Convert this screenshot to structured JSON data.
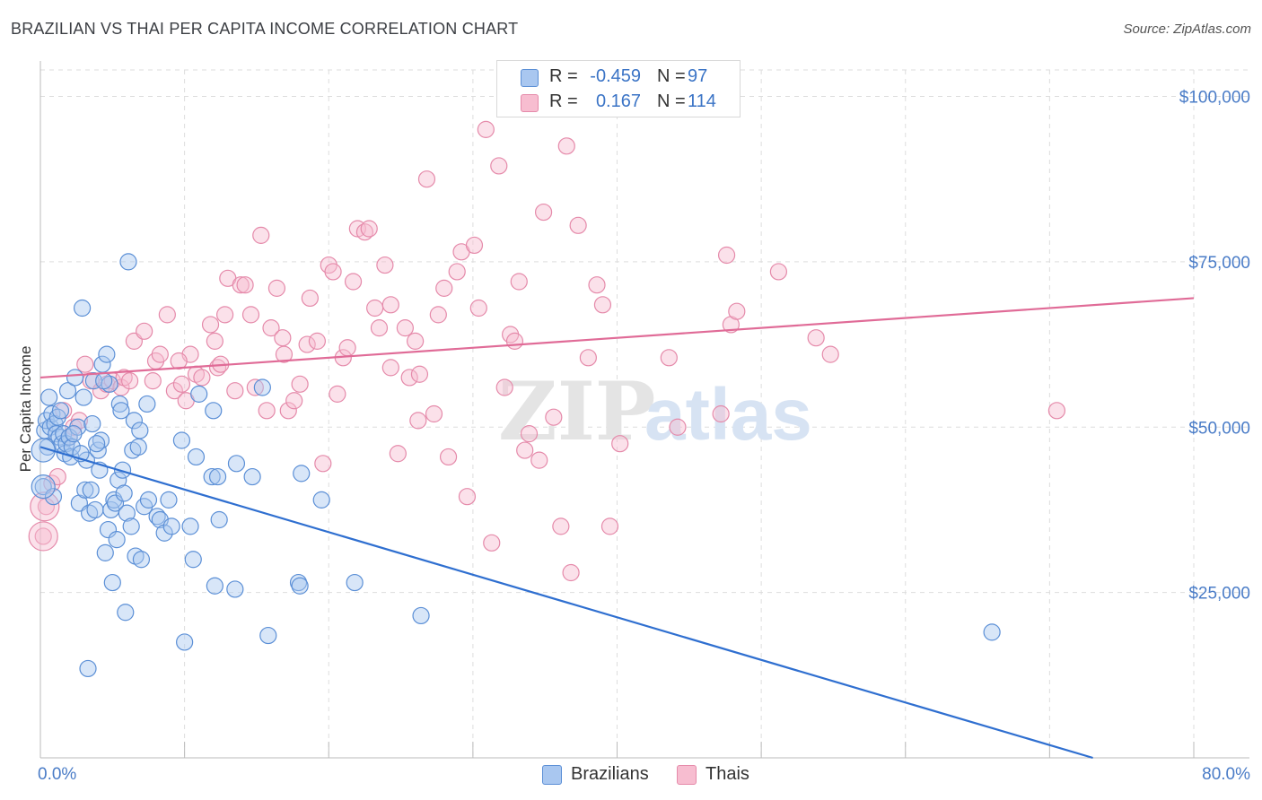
{
  "header": {
    "title": "BRAZILIAN VS THAI PER CAPITA INCOME CORRELATION CHART",
    "source": "Source: ZipAtlas.com"
  },
  "legend": {
    "rows": [
      {
        "r_label": "R =",
        "r_value": "-0.459",
        "n_label": "N =",
        "n_value": "97"
      },
      {
        "r_label": "R =",
        "r_value": "0.167",
        "n_label": "N =",
        "n_value": "114"
      }
    ]
  },
  "watermark": {
    "zip": "ZIP",
    "atlas": "atlas"
  },
  "colors": {
    "blue_fill": "#a9c7f0",
    "blue_stroke": "#5b8fd6",
    "blue_line": "#2f6fd0",
    "pink_fill": "#f7bdd0",
    "pink_stroke": "#e58aaa",
    "pink_line": "#e06b97",
    "tick_text": "#4a7cc7",
    "grid": "#dddddd"
  },
  "chart_data": {
    "type": "scatter",
    "title": "BRAZILIAN VS THAI PER CAPITA INCOME CORRELATION CHART",
    "xlabel": "",
    "ylabel": "Per Capita Income",
    "xlim": [
      0,
      80
    ],
    "ylim": [
      0,
      104000
    ],
    "x_tick_labels": [
      "0.0%",
      "80.0%"
    ],
    "y_ticks": [
      25000,
      50000,
      75000,
      100000
    ],
    "y_tick_labels": [
      "$25,000",
      "$50,000",
      "$75,000",
      "$100,000"
    ],
    "grid": true,
    "legend_position": "top-center",
    "series": [
      {
        "name": "Brazilians",
        "color": "#5b8fd6",
        "trend": {
          "x0": 0,
          "y0": 47000,
          "x1": 73,
          "y1": 0
        },
        "points": [
          [
            0.3,
            49500
          ],
          [
            0.4,
            51000
          ],
          [
            0.5,
            47000
          ],
          [
            0.6,
            54500
          ],
          [
            0.7,
            50000
          ],
          [
            0.8,
            52000
          ],
          [
            1.0,
            50500
          ],
          [
            1.1,
            49000
          ],
          [
            1.2,
            51500
          ],
          [
            1.3,
            48500
          ],
          [
            1.5,
            47500
          ],
          [
            1.6,
            49000
          ],
          [
            1.7,
            46000
          ],
          [
            1.8,
            47500
          ],
          [
            1.9,
            55500
          ],
          [
            2.0,
            48500
          ],
          [
            2.1,
            45500
          ],
          [
            2.2,
            47000
          ],
          [
            2.4,
            57500
          ],
          [
            2.6,
            50000
          ],
          [
            2.7,
            38500
          ],
          [
            2.9,
            68000
          ],
          [
            3.0,
            54500
          ],
          [
            3.1,
            40500
          ],
          [
            3.2,
            45000
          ],
          [
            3.3,
            13500
          ],
          [
            3.4,
            37000
          ],
          [
            3.5,
            40500
          ],
          [
            3.6,
            50500
          ],
          [
            3.7,
            57000
          ],
          [
            3.8,
            37500
          ],
          [
            4.0,
            46500
          ],
          [
            4.1,
            43500
          ],
          [
            4.2,
            48000
          ],
          [
            4.3,
            59500
          ],
          [
            4.5,
            31000
          ],
          [
            4.6,
            61000
          ],
          [
            4.7,
            34500
          ],
          [
            4.8,
            56500
          ],
          [
            4.9,
            37500
          ],
          [
            5.0,
            26500
          ],
          [
            5.1,
            39000
          ],
          [
            5.2,
            38500
          ],
          [
            5.3,
            33000
          ],
          [
            5.4,
            42000
          ],
          [
            5.5,
            53500
          ],
          [
            5.6,
            52500
          ],
          [
            5.7,
            43500
          ],
          [
            5.9,
            22000
          ],
          [
            6.0,
            37000
          ],
          [
            6.1,
            75000
          ],
          [
            6.3,
            35000
          ],
          [
            6.4,
            46500
          ],
          [
            6.5,
            51000
          ],
          [
            6.6,
            30500
          ],
          [
            6.8,
            47000
          ],
          [
            6.9,
            49500
          ],
          [
            7.0,
            30000
          ],
          [
            7.2,
            38000
          ],
          [
            7.4,
            53500
          ],
          [
            7.5,
            39000
          ],
          [
            8.1,
            36500
          ],
          [
            8.3,
            36000
          ],
          [
            8.6,
            34000
          ],
          [
            8.9,
            39000
          ],
          [
            9.1,
            35000
          ],
          [
            9.8,
            48000
          ],
          [
            10.0,
            17500
          ],
          [
            10.4,
            35000
          ],
          [
            10.6,
            30000
          ],
          [
            10.8,
            45500
          ],
          [
            11.0,
            55000
          ],
          [
            11.9,
            42500
          ],
          [
            12.0,
            52500
          ],
          [
            12.1,
            26000
          ],
          [
            12.3,
            42500
          ],
          [
            12.4,
            36000
          ],
          [
            13.5,
            25500
          ],
          [
            13.6,
            44500
          ],
          [
            14.7,
            42500
          ],
          [
            15.4,
            56000
          ],
          [
            15.8,
            18500
          ],
          [
            17.9,
            26500
          ],
          [
            18.0,
            26000
          ],
          [
            18.1,
            43000
          ],
          [
            19.5,
            39000
          ],
          [
            21.8,
            26500
          ],
          [
            26.4,
            21500
          ],
          [
            66.0,
            19000
          ],
          [
            0.2,
            41000
          ],
          [
            0.9,
            39500
          ],
          [
            1.4,
            52500
          ],
          [
            2.3,
            49000
          ],
          [
            2.8,
            46000
          ],
          [
            3.9,
            47500
          ],
          [
            4.4,
            57000
          ],
          [
            5.8,
            40000
          ]
        ]
      },
      {
        "name": "Thais",
        "color": "#e58aaa",
        "trend": {
          "x0": 0,
          "y0": 57500,
          "x1": 80,
          "y1": 69500
        },
        "points": [
          [
            0.2,
            33500
          ],
          [
            0.4,
            38000
          ],
          [
            0.8,
            41500
          ],
          [
            1.2,
            42500
          ],
          [
            1.6,
            52500
          ],
          [
            2.0,
            48500
          ],
          [
            2.3,
            50000
          ],
          [
            3.1,
            59500
          ],
          [
            3.5,
            57000
          ],
          [
            4.2,
            55500
          ],
          [
            4.6,
            56500
          ],
          [
            5.0,
            57000
          ],
          [
            5.6,
            56000
          ],
          [
            5.8,
            57500
          ],
          [
            6.2,
            57000
          ],
          [
            6.5,
            63000
          ],
          [
            7.2,
            64500
          ],
          [
            7.8,
            57000
          ],
          [
            8.0,
            60000
          ],
          [
            8.3,
            61000
          ],
          [
            8.8,
            67000
          ],
          [
            9.3,
            55500
          ],
          [
            9.8,
            56500
          ],
          [
            10.1,
            54000
          ],
          [
            10.4,
            61000
          ],
          [
            10.8,
            58000
          ],
          [
            11.2,
            57500
          ],
          [
            11.8,
            65500
          ],
          [
            12.3,
            59000
          ],
          [
            12.5,
            59500
          ],
          [
            12.8,
            67000
          ],
          [
            13.0,
            72500
          ],
          [
            13.5,
            55500
          ],
          [
            13.9,
            71500
          ],
          [
            14.2,
            71500
          ],
          [
            14.6,
            67000
          ],
          [
            14.9,
            56000
          ],
          [
            15.3,
            79000
          ],
          [
            15.7,
            52500
          ],
          [
            16.0,
            65000
          ],
          [
            16.4,
            71000
          ],
          [
            16.8,
            63500
          ],
          [
            17.2,
            52500
          ],
          [
            17.6,
            54000
          ],
          [
            18.0,
            56500
          ],
          [
            18.5,
            62500
          ],
          [
            18.7,
            69500
          ],
          [
            19.2,
            63000
          ],
          [
            19.6,
            44500
          ],
          [
            20.0,
            74500
          ],
          [
            20.3,
            73500
          ],
          [
            20.6,
            55000
          ],
          [
            21.0,
            60500
          ],
          [
            21.3,
            62000
          ],
          [
            21.7,
            72000
          ],
          [
            22.0,
            80000
          ],
          [
            22.5,
            79500
          ],
          [
            22.8,
            80000
          ],
          [
            23.2,
            68000
          ],
          [
            23.5,
            65000
          ],
          [
            23.9,
            74500
          ],
          [
            24.3,
            68500
          ],
          [
            24.8,
            46000
          ],
          [
            25.3,
            65000
          ],
          [
            25.6,
            57500
          ],
          [
            26.0,
            63000
          ],
          [
            26.3,
            58000
          ],
          [
            26.8,
            87500
          ],
          [
            27.3,
            52000
          ],
          [
            27.6,
            67000
          ],
          [
            28.0,
            71000
          ],
          [
            28.3,
            45500
          ],
          [
            28.9,
            73500
          ],
          [
            29.2,
            76500
          ],
          [
            29.6,
            39500
          ],
          [
            30.1,
            77500
          ],
          [
            30.4,
            68000
          ],
          [
            30.9,
            95000
          ],
          [
            31.3,
            32500
          ],
          [
            31.8,
            89500
          ],
          [
            32.2,
            56000
          ],
          [
            32.6,
            64000
          ],
          [
            32.9,
            63000
          ],
          [
            33.2,
            72000
          ],
          [
            33.6,
            46500
          ],
          [
            33.9,
            49000
          ],
          [
            34.6,
            45000
          ],
          [
            34.9,
            82500
          ],
          [
            35.6,
            51500
          ],
          [
            36.1,
            35000
          ],
          [
            36.5,
            92500
          ],
          [
            36.8,
            28000
          ],
          [
            37.3,
            80500
          ],
          [
            38.0,
            60500
          ],
          [
            38.6,
            71500
          ],
          [
            39.0,
            68500
          ],
          [
            39.5,
            35000
          ],
          [
            40.2,
            47500
          ],
          [
            43.6,
            60500
          ],
          [
            44.2,
            50000
          ],
          [
            47.2,
            52000
          ],
          [
            47.6,
            76000
          ],
          [
            47.9,
            65500
          ],
          [
            48.3,
            67500
          ],
          [
            51.2,
            73500
          ],
          [
            53.8,
            63500
          ],
          [
            54.8,
            61000
          ],
          [
            70.5,
            52500
          ],
          [
            2.7,
            51000
          ],
          [
            9.6,
            60000
          ],
          [
            12.1,
            63000
          ],
          [
            16.9,
            61000
          ],
          [
            26.2,
            51000
          ],
          [
            24.3,
            59000
          ]
        ]
      }
    ]
  }
}
